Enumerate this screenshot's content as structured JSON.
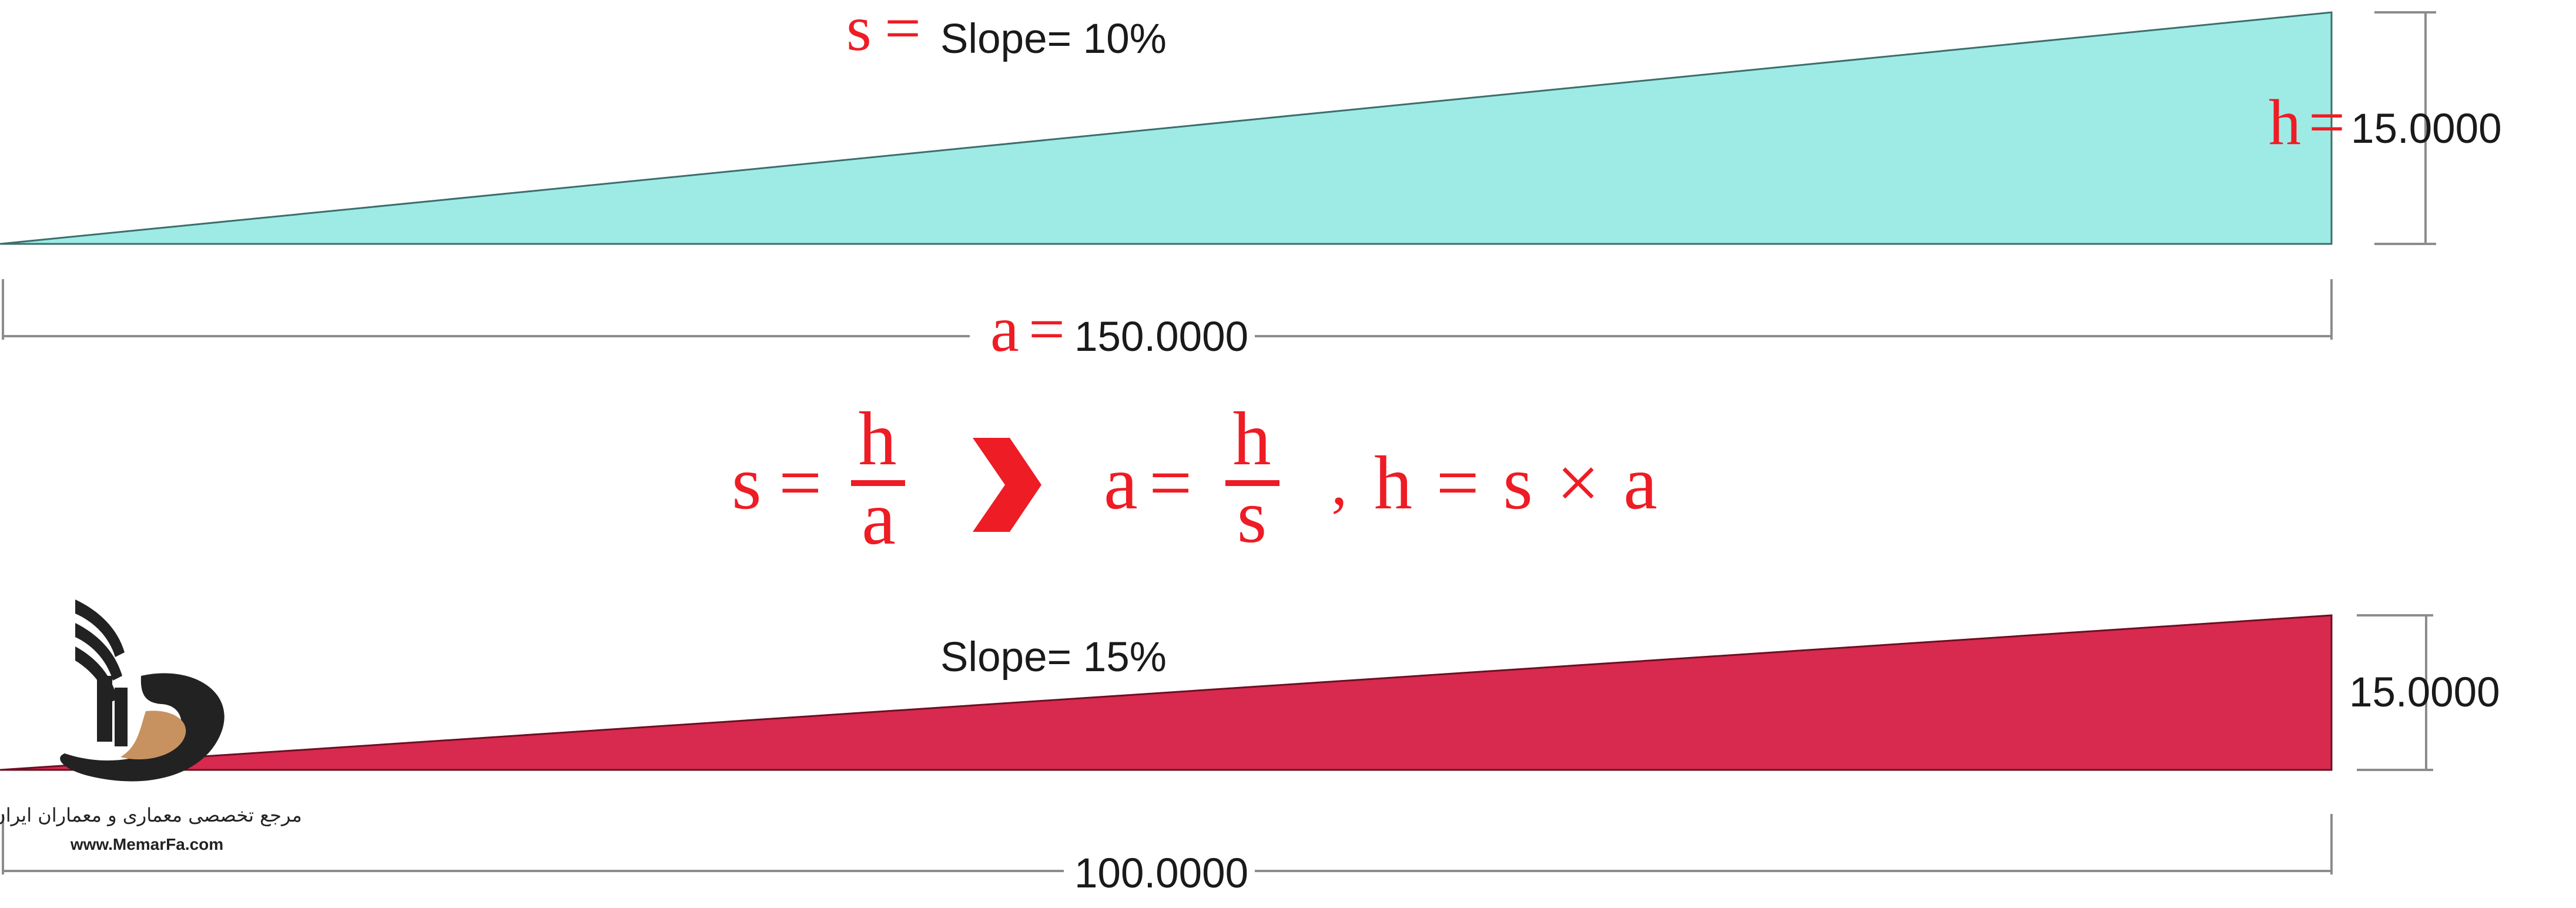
{
  "colors": {
    "triangle_top_fill": "#9eebe6",
    "triangle_bottom_fill": "#d8294e",
    "formula_red": "#ee1c24",
    "dimension_line": "#8c8c8c",
    "label_text": "#1a1a1a",
    "logo_dark": "#222222",
    "logo_accent": "#c7925f"
  },
  "top_triangle": {
    "slope_symbol": "s",
    "equals": "=",
    "slope_label": "Slope= 10%",
    "height_symbol": "h",
    "height_value": "15.0000",
    "base_symbol": "a",
    "base_value": "150.0000"
  },
  "formula": {
    "lhs1": "s",
    "eq1": "=",
    "num1": "h",
    "den1": "a",
    "arrow_icon": "chevron-right-icon",
    "lhs2": "a",
    "eq2": "=",
    "num2": "h",
    "den2": "s",
    "comma": ",",
    "expr3": "h = s × a"
  },
  "bottom_triangle": {
    "slope_label": "Slope= 15%",
    "height_value": "15.0000",
    "base_value": "100.0000"
  },
  "logo": {
    "persian_text": "مرجع تخصصی معماری و معماران ایران",
    "url": "www.MemarFa.com"
  }
}
